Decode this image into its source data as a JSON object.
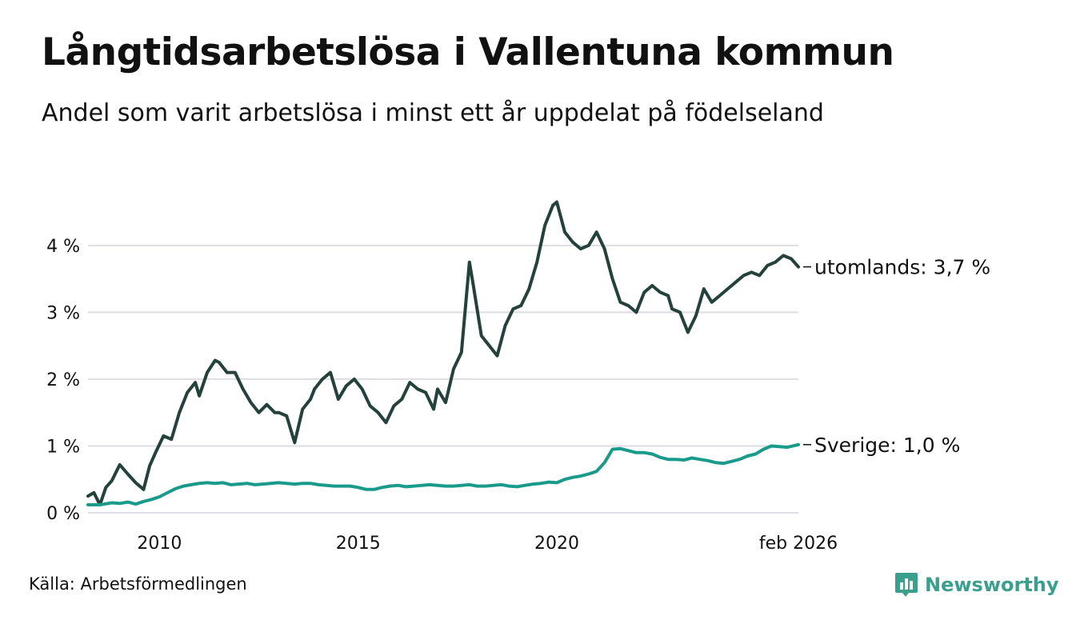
{
  "title": "Långtidsarbetslösa i Vallentuna kommun",
  "subtitle": "Andel som varit arbetslösa i minst ett år uppdelat på födelseland",
  "source": "Källa: Arbetsförmedlingen",
  "brand": "Newsworthy",
  "colors": {
    "utomlands": "#24413c",
    "sverige": "#1a9a8a",
    "grid": "#dddde4",
    "brand": "#3b9f8e"
  },
  "chart_data": {
    "type": "line",
    "title": "Långtidsarbetslösa i Vallentuna kommun",
    "xlabel": "",
    "ylabel": "",
    "xlim": [
      2008.2,
      2026.08
    ],
    "ylim": [
      0,
      4.8
    ],
    "y_ticks": [
      0,
      1,
      2,
      3,
      4
    ],
    "y_tick_labels": [
      "0 %",
      "1 %",
      "2 %",
      "3 %",
      "4 %"
    ],
    "x_ticks": [
      2010,
      2015,
      2020,
      2026.08
    ],
    "x_tick_labels": [
      "2010",
      "2015",
      "2020",
      "feb 2026"
    ],
    "grid": true,
    "series": [
      {
        "name": "utomlands",
        "end_label": "utomlands: 3,7 %",
        "x": [
          2008.2,
          2008.35,
          2008.5,
          2008.65,
          2008.8,
          2009.0,
          2009.2,
          2009.4,
          2009.6,
          2009.75,
          2009.9,
          2010.1,
          2010.3,
          2010.5,
          2010.7,
          2010.9,
          2011.0,
          2011.2,
          2011.4,
          2011.5,
          2011.7,
          2011.9,
          2012.1,
          2012.3,
          2012.5,
          2012.7,
          2012.9,
          2013.0,
          2013.2,
          2013.4,
          2013.6,
          2013.8,
          2013.9,
          2014.1,
          2014.3,
          2014.5,
          2014.7,
          2014.9,
          2015.1,
          2015.3,
          2015.5,
          2015.7,
          2015.9,
          2016.1,
          2016.3,
          2016.5,
          2016.7,
          2016.9,
          2017.0,
          2017.2,
          2017.4,
          2017.6,
          2017.8,
          2017.9,
          2018.1,
          2018.3,
          2018.5,
          2018.7,
          2018.9,
          2019.1,
          2019.3,
          2019.5,
          2019.7,
          2019.9,
          2020.0,
          2020.2,
          2020.4,
          2020.6,
          2020.8,
          2021.0,
          2021.2,
          2021.4,
          2021.6,
          2021.8,
          2022.0,
          2022.2,
          2022.4,
          2022.6,
          2022.8,
          2022.9,
          2023.1,
          2023.3,
          2023.5,
          2023.7,
          2023.9,
          2024.1,
          2024.3,
          2024.5,
          2024.7,
          2024.9,
          2025.1,
          2025.3,
          2025.5,
          2025.7,
          2025.9,
          2026.08
        ],
        "values": [
          0.25,
          0.3,
          0.12,
          0.38,
          0.48,
          0.72,
          0.58,
          0.45,
          0.35,
          0.7,
          0.9,
          1.15,
          1.1,
          1.5,
          1.8,
          1.95,
          1.75,
          2.1,
          2.28,
          2.25,
          2.1,
          2.1,
          1.85,
          1.65,
          1.5,
          1.62,
          1.5,
          1.5,
          1.45,
          1.05,
          1.55,
          1.7,
          1.85,
          2.0,
          2.1,
          1.7,
          1.9,
          2.0,
          1.85,
          1.6,
          1.5,
          1.35,
          1.6,
          1.7,
          1.95,
          1.85,
          1.8,
          1.55,
          1.85,
          1.65,
          2.15,
          2.4,
          3.75,
          3.4,
          2.65,
          2.5,
          2.35,
          2.8,
          3.05,
          3.1,
          3.35,
          3.75,
          4.3,
          4.6,
          4.65,
          4.2,
          4.05,
          3.95,
          4.0,
          4.2,
          3.95,
          3.5,
          3.15,
          3.1,
          3.0,
          3.3,
          3.4,
          3.3,
          3.25,
          3.05,
          3.0,
          2.7,
          2.95,
          3.35,
          3.15,
          3.25,
          3.35,
          3.45,
          3.55,
          3.6,
          3.55,
          3.7,
          3.75,
          3.85,
          3.8,
          3.68
        ]
      },
      {
        "name": "Sverige",
        "end_label": "Sverige: 1,0 %",
        "x": [
          2008.2,
          2008.5,
          2008.8,
          2009.0,
          2009.2,
          2009.4,
          2009.6,
          2009.8,
          2010.0,
          2010.2,
          2010.4,
          2010.6,
          2010.8,
          2011.0,
          2011.2,
          2011.4,
          2011.6,
          2011.8,
          2012.0,
          2012.2,
          2012.4,
          2012.6,
          2012.8,
          2013.0,
          2013.2,
          2013.4,
          2013.6,
          2013.8,
          2014.0,
          2014.2,
          2014.4,
          2014.6,
          2014.8,
          2015.0,
          2015.2,
          2015.4,
          2015.6,
          2015.8,
          2016.0,
          2016.2,
          2016.4,
          2016.6,
          2016.8,
          2017.0,
          2017.2,
          2017.4,
          2017.6,
          2017.8,
          2018.0,
          2018.2,
          2018.4,
          2018.6,
          2018.8,
          2019.0,
          2019.2,
          2019.4,
          2019.6,
          2019.8,
          2020.0,
          2020.2,
          2020.4,
          2020.6,
          2020.8,
          2021.0,
          2021.2,
          2021.4,
          2021.6,
          2021.8,
          2022.0,
          2022.2,
          2022.4,
          2022.6,
          2022.8,
          2023.0,
          2023.2,
          2023.4,
          2023.6,
          2023.8,
          2024.0,
          2024.2,
          2024.4,
          2024.6,
          2024.8,
          2025.0,
          2025.2,
          2025.4,
          2025.6,
          2025.8,
          2026.08
        ],
        "values": [
          0.12,
          0.12,
          0.15,
          0.14,
          0.16,
          0.13,
          0.17,
          0.2,
          0.24,
          0.3,
          0.36,
          0.4,
          0.42,
          0.44,
          0.45,
          0.44,
          0.45,
          0.42,
          0.43,
          0.44,
          0.42,
          0.43,
          0.44,
          0.45,
          0.44,
          0.43,
          0.44,
          0.44,
          0.42,
          0.41,
          0.4,
          0.4,
          0.4,
          0.38,
          0.35,
          0.35,
          0.38,
          0.4,
          0.41,
          0.39,
          0.4,
          0.41,
          0.42,
          0.41,
          0.4,
          0.4,
          0.41,
          0.42,
          0.4,
          0.4,
          0.41,
          0.42,
          0.4,
          0.39,
          0.41,
          0.43,
          0.44,
          0.46,
          0.45,
          0.5,
          0.53,
          0.55,
          0.58,
          0.62,
          0.75,
          0.95,
          0.96,
          0.93,
          0.9,
          0.9,
          0.88,
          0.83,
          0.8,
          0.8,
          0.79,
          0.82,
          0.8,
          0.78,
          0.75,
          0.74,
          0.77,
          0.8,
          0.85,
          0.88,
          0.95,
          1.0,
          0.99,
          0.98,
          1.02
        ]
      }
    ]
  }
}
